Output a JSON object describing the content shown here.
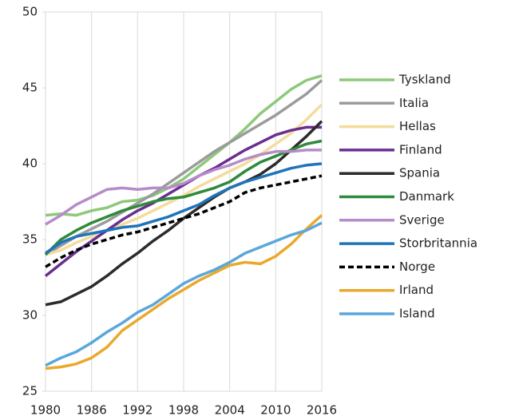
{
  "chart_data": {
    "type": "line",
    "x": [
      1980,
      1982,
      1984,
      1986,
      1988,
      1990,
      1992,
      1994,
      1996,
      1998,
      2000,
      2002,
      2004,
      2006,
      2008,
      2010,
      2012,
      2014,
      2016
    ],
    "xlim": [
      1980,
      2016
    ],
    "xticks": [
      1980,
      1986,
      1992,
      1998,
      2004,
      2010,
      2016
    ],
    "ylim": [
      25,
      50
    ],
    "yticks": [
      25,
      30,
      35,
      40,
      45,
      50
    ],
    "grid": "vertical",
    "legend": "right",
    "series": [
      {
        "name": "Tyskland",
        "color": "#8dc97a",
        "values": [
          36.6,
          36.7,
          36.6,
          36.9,
          37.1,
          37.5,
          37.6,
          37.9,
          38.4,
          39.0,
          39.8,
          40.6,
          41.4,
          42.3,
          43.3,
          44.1,
          44.9,
          45.5,
          45.8
        ]
      },
      {
        "name": "Italia",
        "color": "#9b9b9b",
        "values": [
          34.0,
          34.6,
          35.2,
          35.7,
          36.2,
          36.8,
          37.4,
          38.0,
          38.7,
          39.4,
          40.1,
          40.8,
          41.4,
          42.0,
          42.6,
          43.2,
          43.9,
          44.6,
          45.5
        ]
      },
      {
        "name": "Hellas",
        "color": "#f3dc9c",
        "values": [
          34.0,
          34.3,
          34.8,
          35.2,
          35.6,
          36.0,
          36.4,
          36.9,
          37.4,
          37.9,
          38.5,
          39.0,
          39.5,
          40.0,
          40.6,
          41.3,
          42.0,
          42.9,
          43.9
        ]
      },
      {
        "name": "Finland",
        "color": "#6a2e91",
        "values": [
          32.6,
          33.4,
          34.2,
          34.9,
          35.6,
          36.3,
          36.9,
          37.4,
          38.0,
          38.6,
          39.2,
          39.7,
          40.3,
          40.9,
          41.4,
          41.9,
          42.2,
          42.4,
          42.4
        ]
      },
      {
        "name": "Spania",
        "color": "#2b2b2b",
        "values": [
          30.7,
          30.9,
          31.4,
          31.9,
          32.6,
          33.4,
          34.1,
          34.9,
          35.6,
          36.4,
          37.1,
          37.8,
          38.4,
          38.8,
          39.3,
          40.0,
          40.9,
          41.8,
          42.8
        ]
      },
      {
        "name": "Danmark",
        "color": "#2f8a3a",
        "values": [
          34.0,
          35.0,
          35.6,
          36.1,
          36.5,
          36.9,
          37.2,
          37.5,
          37.7,
          37.8,
          38.1,
          38.4,
          38.8,
          39.5,
          40.1,
          40.5,
          40.9,
          41.3,
          41.5
        ]
      },
      {
        "name": "Sverige",
        "color": "#b58cc9",
        "values": [
          36.0,
          36.6,
          37.3,
          37.8,
          38.3,
          38.4,
          38.3,
          38.4,
          38.4,
          38.7,
          39.2,
          39.6,
          39.9,
          40.3,
          40.6,
          40.8,
          40.8,
          40.9,
          40.9
        ]
      },
      {
        "name": "Storbritannia",
        "color": "#1f74bb",
        "values": [
          34.1,
          34.8,
          35.2,
          35.4,
          35.6,
          35.8,
          35.9,
          36.2,
          36.5,
          36.9,
          37.3,
          37.9,
          38.4,
          38.8,
          39.1,
          39.4,
          39.7,
          39.9,
          40.0
        ]
      },
      {
        "name": "Norge",
        "color": "#000000",
        "dashed": true,
        "values": [
          33.2,
          33.8,
          34.3,
          34.7,
          35.0,
          35.3,
          35.5,
          35.8,
          36.1,
          36.4,
          36.7,
          37.1,
          37.5,
          38.1,
          38.4,
          38.6,
          38.8,
          39.0,
          39.2
        ]
      },
      {
        "name": "Irland",
        "color": "#eaa92c",
        "values": [
          26.5,
          26.6,
          26.8,
          27.2,
          27.9,
          29.0,
          29.7,
          30.4,
          31.1,
          31.7,
          32.3,
          32.8,
          33.3,
          33.5,
          33.4,
          33.9,
          34.7,
          35.7,
          36.6
        ]
      },
      {
        "name": "Island",
        "color": "#5aa7dc",
        "values": [
          26.7,
          27.2,
          27.6,
          28.2,
          28.9,
          29.5,
          30.2,
          30.7,
          31.4,
          32.1,
          32.6,
          33.0,
          33.5,
          34.1,
          34.5,
          34.9,
          35.3,
          35.6,
          36.1
        ]
      }
    ]
  }
}
